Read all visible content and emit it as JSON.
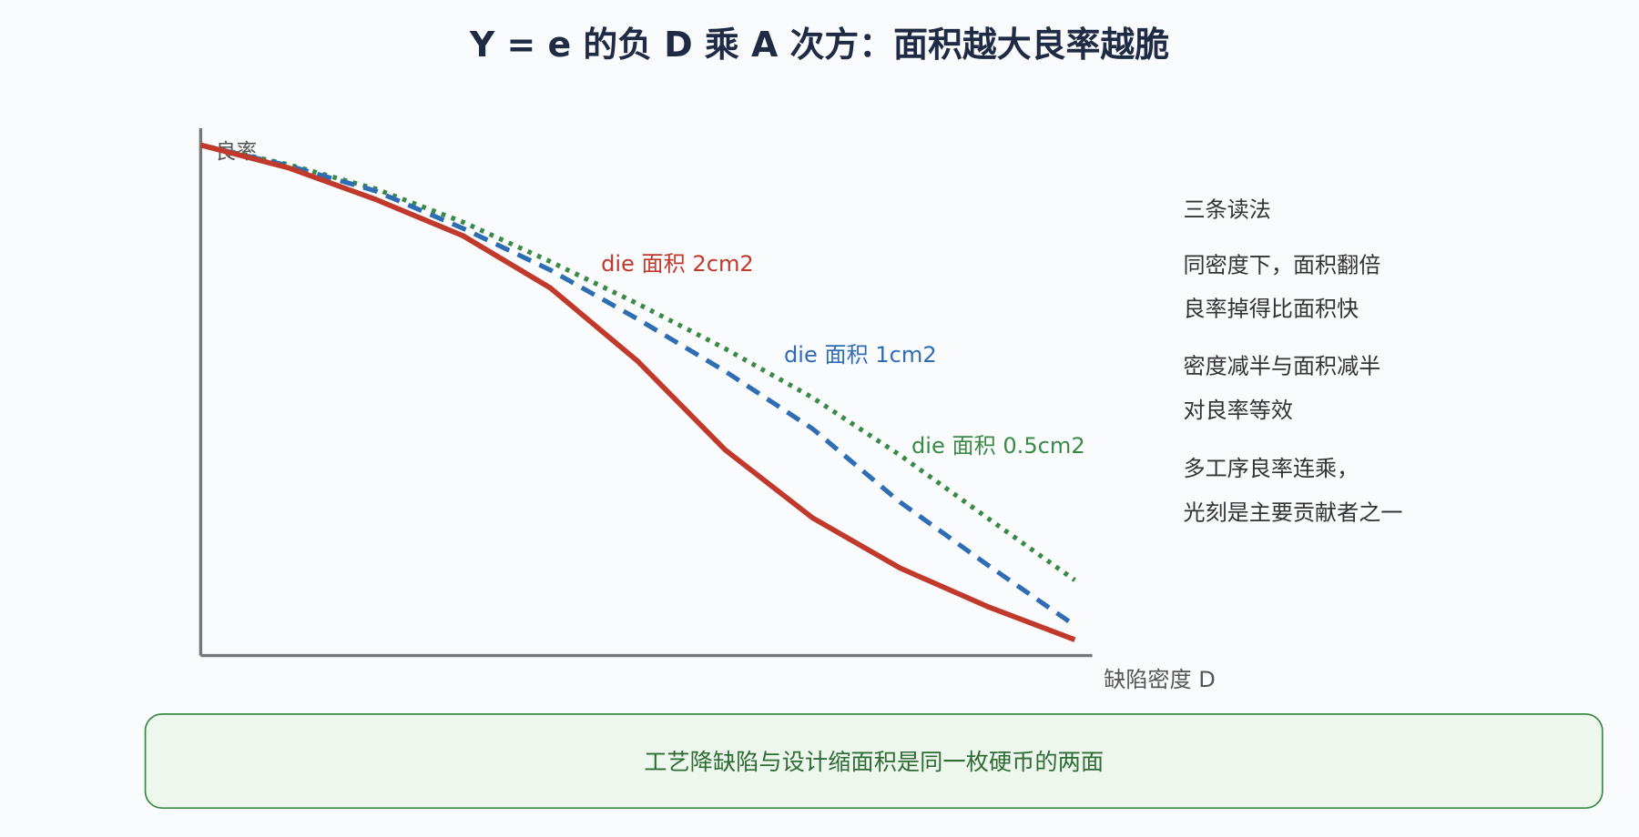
{
  "chart_data": {
    "type": "line",
    "title": "Y = e 的负 D 乘 A 次方：面积越大良率越脆",
    "y_label": "良率",
    "x_label": "缺陷密度 D",
    "xlim": [
      0,
      1.02
    ],
    "ylim": [
      0,
      1
    ],
    "x": [
      0,
      0.1,
      0.2,
      0.3,
      0.4,
      0.5,
      0.6,
      0.7,
      0.8,
      0.9,
      1.0
    ],
    "series": [
      {
        "name": "die 面积 2cm2",
        "color": "#c0392b",
        "dash": "solid",
        "values": [
          0.968,
          0.925,
          0.865,
          0.796,
          0.697,
          0.558,
          0.39,
          0.261,
          0.166,
          0.093,
          0.03
        ]
      },
      {
        "name": "die 面积 1cm2",
        "color": "#2e6db4",
        "dash": "dashed",
        "values": [
          0.968,
          0.929,
          0.881,
          0.81,
          0.731,
          0.638,
          0.539,
          0.43,
          0.291,
          0.172,
          0.057
        ]
      },
      {
        "name": "die 面积 0.5cm2",
        "color": "#3a8a45",
        "dash": "dotted",
        "values": [
          0.968,
          0.931,
          0.885,
          0.822,
          0.747,
          0.667,
          0.582,
          0.489,
          0.38,
          0.261,
          0.143
        ]
      }
    ]
  },
  "notes": {
    "heading": "三条读法",
    "lines": [
      "同密度下，面积翻倍",
      "良率掉得比面积快",
      "密度减半与面积减半",
      "对良率等效",
      "多工序良率连乘，",
      "光刻是主要贡献者之一"
    ]
  },
  "footer": "工艺降缺陷与设计缩面积是同一枚硬币的两面"
}
